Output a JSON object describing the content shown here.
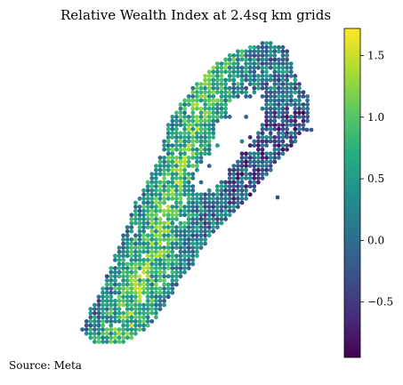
{
  "map": {
    "title": "Relative Wealth Index at 2.4sq km grids",
    "source": "Source: Meta"
  },
  "colorbar": {
    "label": "",
    "colormap": "viridis",
    "range": [
      -0.95,
      1.72
    ],
    "ticks": [
      {
        "value": 1.5,
        "label": "1.5"
      },
      {
        "value": 1.0,
        "label": "1.0"
      },
      {
        "value": 0.5,
        "label": "0.5"
      },
      {
        "value": 0.0,
        "label": "0.0"
      },
      {
        "value": -0.5,
        "label": "−0.5"
      }
    ]
  }
}
